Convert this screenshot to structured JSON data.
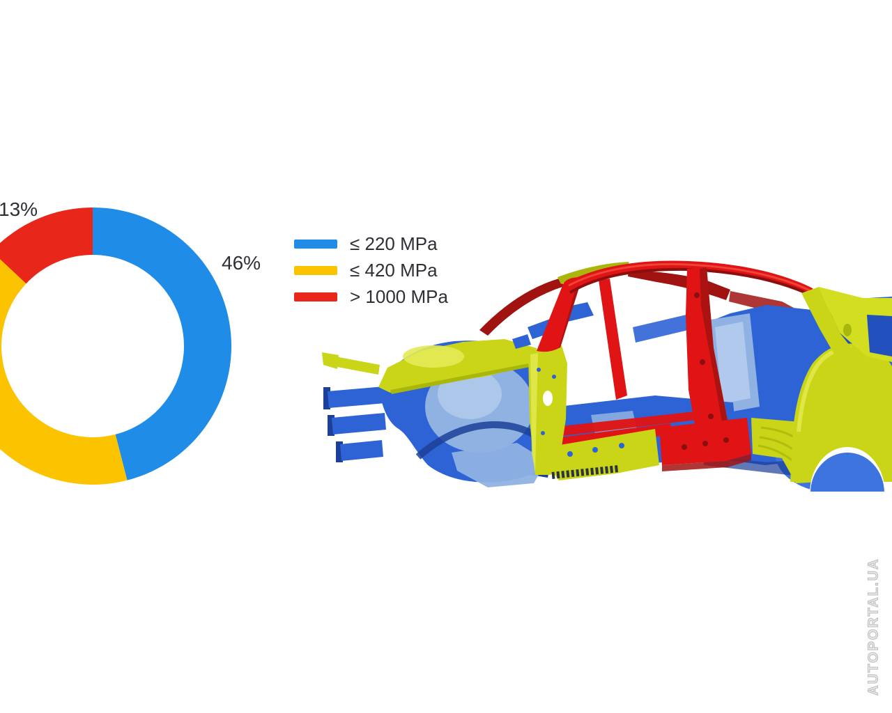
{
  "colors": {
    "background": "#ffffff",
    "text": "#2e2e36",
    "watermark": "#c2c2c2",
    "chart_blue": "#1f8ce8",
    "chart_yellow": "#fcc400",
    "chart_red": "#e8261a",
    "car_blue": "#2e63d6",
    "car_blue_mid": "#3d74de",
    "car_blue_light": "#8fb2e2",
    "car_blue_pale": "#b7cdee",
    "car_blue_dark": "#1c3f98",
    "car_blue_deep": "#2250bc",
    "car_lime": "#c9d516",
    "car_lime_bright": "#d4de20",
    "car_lime_pale": "#e4ea55",
    "car_lime_dark": "#a9b70c",
    "car_red": "#e01414",
    "car_red_dark": "#a01311",
    "car_red_deep": "#8d0e0e",
    "car_red_hi": "#f4554a"
  },
  "chart_data": {
    "type": "pie",
    "donut": true,
    "title": "",
    "start_angle_deg": -90,
    "clockwise": true,
    "legend_position": "right-of-chart",
    "segments": [
      {
        "name": "≤ 220 MPa",
        "value_pct": 46,
        "color": "#1f8ce8",
        "callout": "46%"
      },
      {
        "name": "≤ 420 MPa",
        "value_pct": 41,
        "color": "#fcc400",
        "callout": ""
      },
      {
        "name": "> 1000 MPa",
        "value_pct": 13,
        "color": "#e8261a",
        "callout": "13%"
      }
    ]
  },
  "legend": {
    "items": [
      {
        "label": "≤ 220 MPa",
        "color": "#1f8ce8"
      },
      {
        "label": "≤ 420 MPa",
        "color": "#fcc400"
      },
      {
        "label": "> 1000 MPa",
        "color": "#e8261a"
      }
    ]
  },
  "car_diagram": {
    "type": "body-in-white-steel-strength-illustration",
    "zones": [
      {
        "color": "#2e63d6",
        "strength": "≤ 220 MPa",
        "parts": "front rails, wheel houses, floor, rear body"
      },
      {
        "color": "#c9d516",
        "strength": "≤ 420 MPa",
        "parts": "cowl, hinge pillar, sills, C-pillar, rear wheel arch"
      },
      {
        "color": "#e01414",
        "strength": "> 1000 MPa",
        "parts": "A-pillars, B-pillars, roof rails, sill centre, floor crossmembers"
      }
    ]
  },
  "watermark": "AUTOPORTAL.UA"
}
